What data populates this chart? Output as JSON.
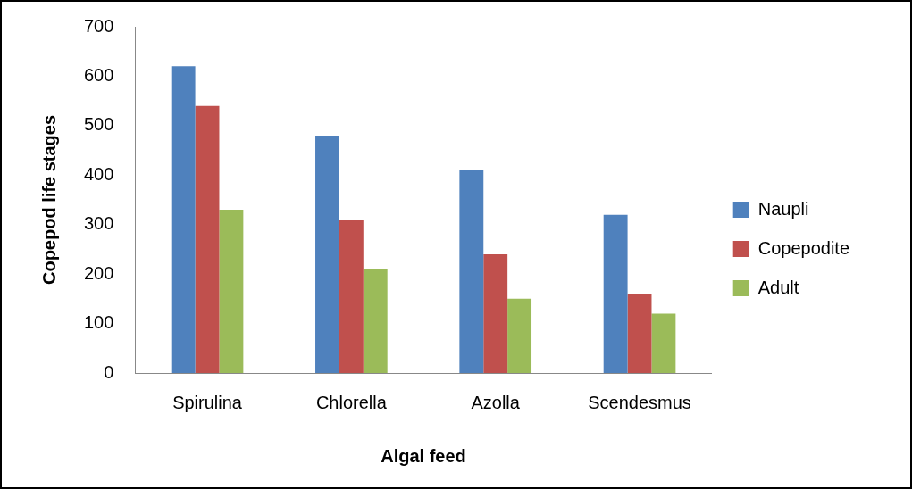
{
  "chart_data": {
    "type": "bar",
    "xlabel": "Algal feed",
    "ylabel": "Copepod life stages",
    "categories": [
      "Spirulina",
      "Chlorella",
      "Azolla",
      "Scendesmus"
    ],
    "series": [
      {
        "name": "Naupli",
        "color": "#4f81bd",
        "values": [
          620,
          480,
          410,
          320
        ]
      },
      {
        "name": "Copepodite",
        "color": "#c0504d",
        "values": [
          540,
          310,
          240,
          160
        ]
      },
      {
        "name": "Adult",
        "color": "#9bbb59",
        "values": [
          330,
          210,
          150,
          120
        ]
      }
    ],
    "ylim": [
      0,
      700
    ],
    "yticks": [
      0,
      100,
      200,
      300,
      400,
      500,
      600,
      700
    ],
    "grid": false,
    "legend": "right"
  }
}
